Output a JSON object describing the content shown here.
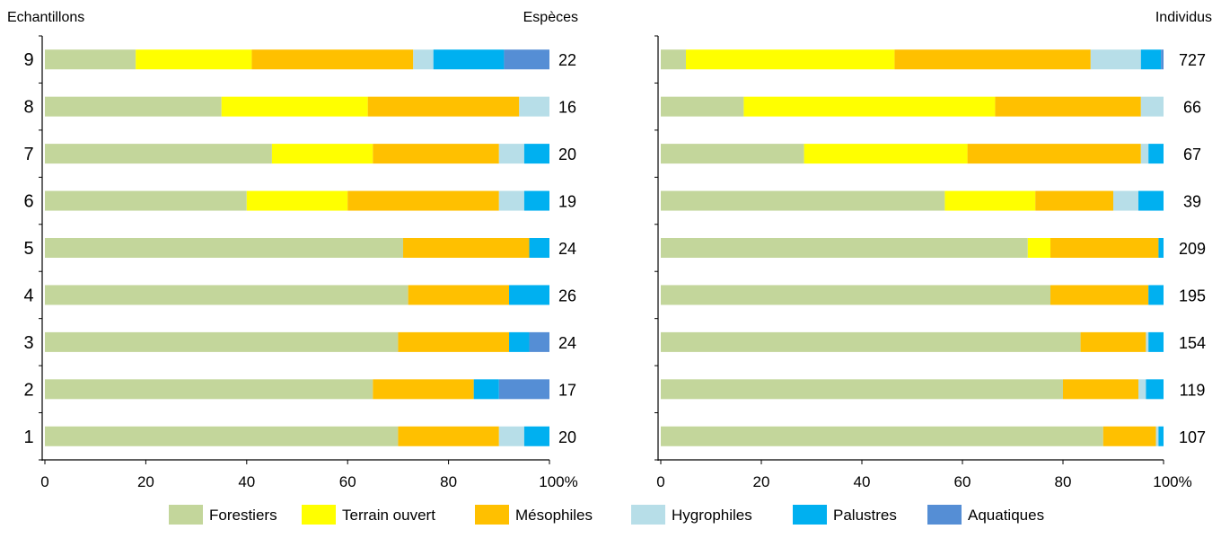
{
  "chart_data": [
    {
      "type": "bar",
      "orientation": "horizontal",
      "stacked": "percent",
      "left_header": "Echantillons",
      "right_header": "Espèces",
      "categories": [
        "1",
        "2",
        "3",
        "4",
        "5",
        "6",
        "7",
        "8",
        "9"
      ],
      "series": [
        {
          "name": "Forestiers",
          "color": "#C3D69B",
          "values": [
            70,
            65,
            70,
            72,
            71,
            40,
            45,
            35,
            18
          ]
        },
        {
          "name": "Terrain ouvert",
          "color": "#FFFF00",
          "values": [
            0,
            0,
            0,
            0,
            0,
            20,
            20,
            29,
            23
          ]
        },
        {
          "name": "Mésophiles",
          "color": "#FFC000",
          "values": [
            20,
            20,
            22,
            20,
            25,
            30,
            25,
            30,
            32
          ]
        },
        {
          "name": "Hygrophiles",
          "color": "#B7DEE8",
          "values": [
            5,
            0,
            0,
            0,
            0,
            5,
            5,
            6,
            4
          ]
        },
        {
          "name": "Palustres",
          "color": "#00B0F0",
          "values": [
            5,
            5,
            4,
            8,
            4,
            5,
            5,
            0,
            14
          ]
        },
        {
          "name": "Aquatiques",
          "color": "#558ED5",
          "values": [
            0,
            10,
            4,
            0,
            0,
            0,
            0,
            0,
            9
          ]
        }
      ],
      "totals": [
        20,
        17,
        24,
        26,
        24,
        19,
        20,
        16,
        22
      ],
      "x_ticks": [
        "0",
        "20",
        "40",
        "60",
        "80",
        "100%"
      ],
      "xlim": [
        0,
        100
      ]
    },
    {
      "type": "bar",
      "orientation": "horizontal",
      "stacked": "percent",
      "right_header": "Individus",
      "categories": [
        "1",
        "2",
        "3",
        "4",
        "5",
        "6",
        "7",
        "8",
        "9"
      ],
      "series": [
        {
          "name": "Forestiers",
          "color": "#C3D69B",
          "values": [
            88,
            80,
            83.5,
            77.5,
            73,
            56.5,
            28.5,
            16.5,
            5
          ]
        },
        {
          "name": "Terrain ouvert",
          "color": "#FFFF00",
          "values": [
            0,
            0,
            0,
            0,
            4.5,
            18,
            32.5,
            50,
            41.5
          ]
        },
        {
          "name": "Mésophiles",
          "color": "#FFC000",
          "values": [
            10.5,
            15,
            13,
            19.5,
            21.5,
            15.5,
            34.5,
            29,
            39
          ]
        },
        {
          "name": "Hygrophiles",
          "color": "#B7DEE8",
          "values": [
            0.5,
            1.5,
            0.5,
            0,
            0,
            5,
            1.5,
            4.5,
            10
          ]
        },
        {
          "name": "Palustres",
          "color": "#00B0F0",
          "values": [
            1,
            3.5,
            3,
            3,
            1,
            5,
            3,
            0,
            4
          ]
        },
        {
          "name": "Aquatiques",
          "color": "#558ED5",
          "values": [
            0,
            0,
            0,
            0,
            0,
            0,
            0,
            0,
            0.5
          ]
        }
      ],
      "totals": [
        107,
        119,
        154,
        195,
        209,
        39,
        67,
        66,
        727
      ],
      "x_ticks": [
        "0",
        "20",
        "40",
        "60",
        "80",
        "100%"
      ],
      "xlim": [
        0,
        100
      ]
    }
  ],
  "legend": [
    "Forestiers",
    "Terrain ouvert",
    "Mésophiles",
    "Hygrophiles",
    "Palustres",
    "Aquatiques"
  ]
}
